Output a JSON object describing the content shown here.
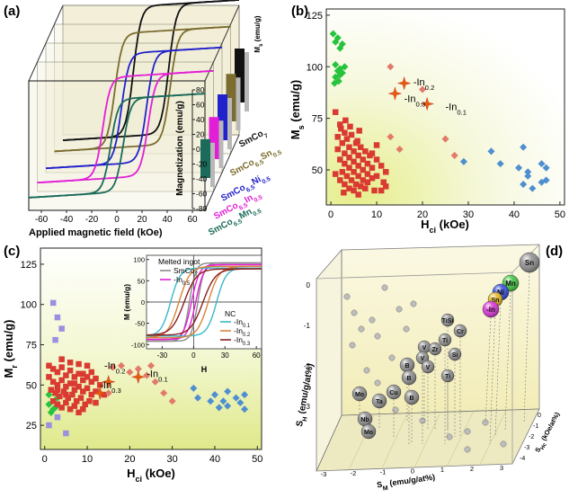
{
  "panels": {
    "a": {
      "label": "(a)"
    },
    "b": {
      "label": "(b)"
    },
    "c": {
      "label": "(c)"
    },
    "d": {
      "label": "(d)"
    }
  },
  "chart_data": [
    {
      "id": "a",
      "type": "line",
      "xlabel": "Applied magnetic field (kOe)",
      "ylabel": "Magnetization (emu/g)",
      "bar_axis_label": "Ms (emu/g)",
      "x_ticks": [
        "-60",
        "-40",
        "-20",
        "0",
        "20",
        "40",
        "60"
      ],
      "y_ticks": [
        "-80",
        "-60",
        "-40",
        "-20",
        "0",
        "20",
        "40",
        "60",
        "80"
      ],
      "xlim": [
        -70,
        70
      ],
      "ylim": [
        -100,
        100
      ],
      "series": [
        {
          "name": "SmCo7",
          "color": "#111111",
          "ms": 100,
          "hc": 14
        },
        {
          "name": "SmCo6.5Sn0.5",
          "color": "#7b6c2f",
          "ms": 88,
          "hc": 22
        },
        {
          "name": "SmCo6.5Ni0.5",
          "color": "#2222cc",
          "ms": 85,
          "hc": 10
        },
        {
          "name": "SmCo6.5In0.5",
          "color": "#e21fd6",
          "ms": 78,
          "hc": 18
        },
        {
          "name": "SmCo6.5Mn0.5",
          "color": "#1b6b5a",
          "ms": 72,
          "hc": 5
        }
      ]
    },
    {
      "id": "b",
      "type": "scatter",
      "xlabel": "H",
      "xlabel_sub": "ci",
      "xlabel_unit": " (kOe)",
      "ylabel": "M",
      "ylabel_sub": "s",
      "ylabel_unit": " (emu/g)",
      "x_ticks": [
        0,
        10,
        20,
        30,
        40,
        50
      ],
      "y_ticks": [
        50,
        75,
        100,
        125
      ],
      "xlim": [
        -1,
        51
      ],
      "ylim": [
        33,
        128
      ],
      "annotations": [
        {
          "text": "-In",
          "sub": "0.2",
          "x": 18,
          "y": 91
        },
        {
          "text": "-In",
          "sub": "0.3",
          "x": 16,
          "y": 83
        },
        {
          "text": "-In",
          "sub": "0.1",
          "x": 25,
          "y": 79
        }
      ],
      "series": [
        {
          "name": "",
          "marker": "diamond",
          "color": "#27c33d",
          "points": [
            [
              0.5,
              116
            ],
            [
              1,
              112
            ],
            [
              1.5,
              114
            ],
            [
              2,
              109
            ],
            [
              2.5,
              111
            ],
            [
              1,
              101
            ],
            [
              1.5,
              98
            ],
            [
              2,
              96
            ],
            [
              1,
              95
            ],
            [
              2,
              99
            ],
            [
              2.5,
              97
            ],
            [
              3,
              100
            ],
            [
              0.8,
              92
            ],
            [
              1.7,
              93
            ]
          ]
        },
        {
          "name": "",
          "marker": "square",
          "color": "#d93a32",
          "points": [
            [
              1,
              78
            ],
            [
              2,
              72
            ],
            [
              3,
              68
            ],
            [
              1.5,
              66
            ],
            [
              2.5,
              63
            ],
            [
              3.5,
              65
            ],
            [
              4,
              61
            ],
            [
              4.5,
              67
            ],
            [
              5,
              59
            ],
            [
              5.5,
              63
            ],
            [
              6,
              57
            ],
            [
              6.5,
              61
            ],
            [
              7,
              55
            ],
            [
              7.5,
              59
            ],
            [
              8,
              53
            ],
            [
              8.5,
              57
            ],
            [
              3,
              58
            ],
            [
              4,
              56
            ],
            [
              5,
              54
            ],
            [
              6,
              52
            ],
            [
              7,
              50
            ],
            [
              8,
              48
            ],
            [
              9,
              51
            ],
            [
              10,
              47
            ],
            [
              2,
              55
            ],
            [
              3,
              53
            ],
            [
              4,
              51
            ],
            [
              5,
              49
            ],
            [
              6,
              47
            ],
            [
              7,
              45
            ],
            [
              8,
              44
            ],
            [
              9,
              46
            ],
            [
              2.5,
              49
            ],
            [
              3.5,
              47
            ],
            [
              4.5,
              45
            ],
            [
              5.5,
              43
            ],
            [
              6.5,
              42
            ],
            [
              7.5,
              41
            ],
            [
              1,
              48
            ],
            [
              2,
              45
            ],
            [
              3,
              43
            ],
            [
              4,
              41
            ],
            [
              5,
              40
            ],
            [
              6,
              38
            ],
            [
              9,
              58
            ],
            [
              10,
              55
            ],
            [
              11,
              52
            ],
            [
              12,
              49
            ],
            [
              12,
              42
            ],
            [
              11,
              40
            ],
            [
              10,
              62
            ],
            [
              1.5,
              60
            ],
            [
              2.2,
              70
            ],
            [
              3.2,
              74
            ],
            [
              4.2,
              71
            ],
            [
              6.2,
              69
            ],
            [
              2.8,
              39
            ],
            [
              9.5,
              40
            ],
            [
              11.5,
              44
            ],
            [
              5.8,
              64
            ]
          ]
        },
        {
          "name": "",
          "marker": "diamond",
          "color": "#e27a6b",
          "points": [
            [
              13,
              100
            ],
            [
              20,
              89
            ],
            [
              13,
              66
            ],
            [
              25,
              65
            ],
            [
              27,
              57
            ],
            [
              15,
              60
            ]
          ]
        },
        {
          "name": "",
          "marker": "diamond",
          "color": "#4f8fd0",
          "points": [
            [
              29,
              54
            ],
            [
              35,
              59
            ],
            [
              37,
              53
            ],
            [
              42,
              61
            ],
            [
              41,
              51
            ],
            [
              42,
              43
            ],
            [
              43,
              47
            ],
            [
              46,
              53
            ],
            [
              47,
              51
            ],
            [
              47,
              45
            ],
            [
              46,
              44
            ],
            [
              44,
              41
            ],
            [
              43,
              49
            ]
          ]
        },
        {
          "name": "In",
          "marker": "star",
          "color": "#e85a0c",
          "points": [
            [
              16,
              92
            ],
            [
              14,
              87
            ],
            [
              21,
              82
            ]
          ]
        }
      ]
    },
    {
      "id": "c",
      "type": "scatter",
      "xlabel": "H",
      "xlabel_sub": "ci",
      "xlabel_unit": " (kOe)",
      "ylabel": "M",
      "ylabel_sub": "r",
      "ylabel_unit": " (emu/g)",
      "x_ticks": [
        0,
        10,
        20,
        30,
        40,
        50
      ],
      "y_ticks": [
        25,
        50,
        75,
        100,
        125
      ],
      "xlim": [
        -1,
        51
      ],
      "ylim": [
        10,
        135
      ],
      "annotations": [
        {
          "text": "-In",
          "sub": "0.2",
          "x": 14,
          "y": 60
        },
        {
          "text": "-In",
          "sub": "0.3",
          "x": 13,
          "y": 48
        },
        {
          "text": "-In",
          "sub": "0.1",
          "x": 24,
          "y": 55
        }
      ],
      "series": [
        {
          "name": "",
          "marker": "square",
          "color": "#9a8fe0",
          "points": [
            [
              2,
              101
            ],
            [
              3,
              92
            ],
            [
              4,
              85
            ],
            [
              2.5,
              78
            ],
            [
              1,
              25
            ],
            [
              3,
              30
            ],
            [
              5,
              20
            ]
          ]
        },
        {
          "name": "",
          "marker": "diamond",
          "color": "#27c33d",
          "points": [
            [
              1,
              38
            ],
            [
              2,
              35
            ],
            [
              1.5,
              33
            ],
            [
              2.5,
              36
            ],
            [
              3,
              42
            ],
            [
              1,
              44
            ]
          ]
        },
        {
          "name": "",
          "marker": "square",
          "color": "#d93a32",
          "points": [
            [
              1,
              62
            ],
            [
              2,
              60
            ],
            [
              3,
              58
            ],
            [
              4,
              61
            ],
            [
              5,
              56
            ],
            [
              6,
              59
            ],
            [
              7,
              55
            ],
            [
              8,
              57
            ],
            [
              9,
              53
            ],
            [
              10,
              55
            ],
            [
              11,
              52
            ],
            [
              12,
              54
            ],
            [
              2,
              52
            ],
            [
              3,
              50
            ],
            [
              4,
              53
            ],
            [
              5,
              49
            ],
            [
              6,
              51
            ],
            [
              7,
              47
            ],
            [
              8,
              49
            ],
            [
              9,
              46
            ],
            [
              10,
              48
            ],
            [
              11,
              44
            ],
            [
              12,
              46
            ],
            [
              1.5,
              47
            ],
            [
              2.5,
              45
            ],
            [
              3.5,
              43
            ],
            [
              4.5,
              46
            ],
            [
              5.5,
              42
            ],
            [
              6.5,
              44
            ],
            [
              7.5,
              40
            ],
            [
              8.5,
              42
            ],
            [
              9.5,
              38
            ],
            [
              10.5,
              40
            ],
            [
              2,
              40
            ],
            [
              3,
              38
            ],
            [
              4,
              36
            ],
            [
              5,
              39
            ],
            [
              6,
              35
            ],
            [
              7,
              37
            ],
            [
              8,
              33
            ],
            [
              9,
              35
            ],
            [
              1,
              55
            ],
            [
              13,
              50
            ],
            [
              14,
              44
            ],
            [
              12,
              39
            ],
            [
              6,
              64
            ],
            [
              8,
              63
            ],
            [
              10,
              62
            ],
            [
              4,
              66
            ],
            [
              3,
              47
            ],
            [
              5,
              44
            ],
            [
              7,
              51
            ],
            [
              9,
              57
            ],
            [
              11,
              58
            ]
          ]
        },
        {
          "name": "",
          "marker": "diamond",
          "color": "#e27a6b",
          "points": [
            [
              16,
              61
            ],
            [
              18,
              62
            ],
            [
              20,
              58
            ],
            [
              22,
              60
            ],
            [
              24,
              56
            ],
            [
              26,
              52
            ],
            [
              28,
              45
            ],
            [
              30,
              40
            ],
            [
              25,
              62
            ],
            [
              15,
              45
            ]
          ]
        },
        {
          "name": "",
          "marker": "diamond",
          "color": "#4f8fd0",
          "points": [
            [
              35,
              48
            ],
            [
              36,
              42
            ],
            [
              40,
              44
            ],
            [
              42,
              40
            ],
            [
              43,
              37
            ],
            [
              45,
              42
            ],
            [
              46,
              39
            ],
            [
              47,
              35
            ],
            [
              47,
              44
            ],
            [
              41,
              36
            ],
            [
              43,
              46
            ],
            [
              39,
              40
            ]
          ]
        },
        {
          "name": "In",
          "marker": "star",
          "color": "#e85a0c",
          "points": [
            [
              15,
              52
            ],
            [
              13,
              45
            ],
            [
              22,
              55
            ]
          ]
        }
      ],
      "inset": {
        "xlabel": "H",
        "ylabel": "M (emu/g)",
        "x_ticks": [
          -30,
          0,
          30,
          60
        ],
        "y_ticks": [
          -100,
          -50,
          0,
          50,
          100
        ],
        "legend_title_1": "Melted ingot",
        "legend_title_2": "NC",
        "legend": [
          {
            "name": "SmCo",
            "sub": "7",
            "color": "#8a8a8a",
            "group": 1
          },
          {
            "name": "-In",
            "sub": "0.5",
            "color": "#e21fd6",
            "group": 1
          },
          {
            "name": "-In",
            "sub": "0.1",
            "color": "#38b7c9",
            "group": 2
          },
          {
            "name": "-In",
            "sub": "0.2",
            "color": "#d8843b",
            "group": 2
          },
          {
            "name": "-In",
            "sub": "0.3",
            "color": "#8a1f1f",
            "group": 2
          }
        ]
      }
    },
    {
      "id": "d",
      "type": "scatter",
      "zlabel": "S",
      "zlabel_sub": "H",
      "zlabel_unit": " (emu/g/at%)",
      "xlabel": "S",
      "xlabel_sub": "Hc",
      "xlabel_unit": " (kOe/at%)",
      "ylabel": "S",
      "ylabel_sub": "M",
      "ylabel_unit": " (emu/g/at%)",
      "z_ticks": [
        "-3",
        "-2",
        "-1",
        "0"
      ],
      "x_ticks": [
        "-3",
        "-2",
        "-1",
        "0",
        "1",
        "2",
        "3"
      ],
      "y_ticks": [
        "-4",
        "-3",
        "-2",
        "-1",
        "0"
      ],
      "elements": [
        {
          "label": "Sn",
          "color": "#8c8c8c"
        },
        {
          "label": "Mn",
          "color": "#3cc43c"
        },
        {
          "label": "Ni",
          "color": "#2f47d8"
        },
        {
          "label": "Sn",
          "color": "#e4b21a"
        },
        {
          "label": "-In",
          "color": "#d92ed6"
        },
        {
          "label": "TiSi",
          "color": "#8c8c8c"
        },
        {
          "label": "Cr",
          "color": "#8c8c8c"
        },
        {
          "label": "Ti",
          "color": "#8c8c8c"
        },
        {
          "label": "V",
          "color": "#8c8c8c"
        },
        {
          "label": "Zr",
          "color": "#8c8c8c"
        },
        {
          "label": "Si",
          "color": "#8c8c8c"
        },
        {
          "label": "V",
          "color": "#8c8c8c"
        },
        {
          "label": "B",
          "color": "#8c8c8c"
        },
        {
          "label": "V",
          "color": "#8c8c8c"
        },
        {
          "label": "Ti",
          "color": "#8c8c8c"
        },
        {
          "label": "B",
          "color": "#8c8c8c"
        },
        {
          "label": "Mo",
          "color": "#8c8c8c"
        },
        {
          "label": "Ta",
          "color": "#8c8c8c"
        },
        {
          "label": "Cu",
          "color": "#8c8c8c"
        },
        {
          "label": "B",
          "color": "#8c8c8c"
        },
        {
          "label": "Nb",
          "color": "#8c8c8c"
        },
        {
          "label": "Mo",
          "color": "#8c8c8c"
        }
      ]
    }
  ]
}
